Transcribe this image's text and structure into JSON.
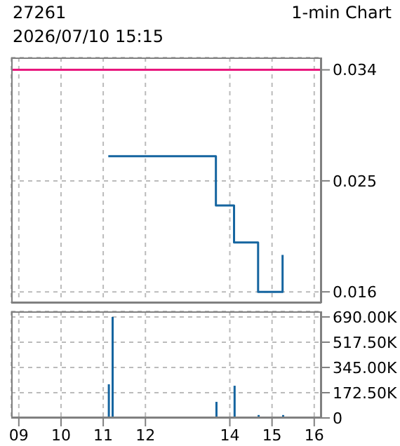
{
  "chart_data": [
    {
      "type": "step",
      "title": "27261",
      "subtitle": "1-min Chart",
      "annotations": [
        "2026/07/10 15:15"
      ],
      "series": [
        {
          "color": "#1565a0",
          "x": [
            11.12,
            13.67,
            14.1,
            14.67,
            15.25
          ],
          "values": [
            0.027,
            0.023,
            0.02,
            0.016,
            0.019
          ]
        }
      ],
      "xlim": [
        8.82,
        16.17
      ],
      "xticks": [
        9,
        10,
        11,
        12,
        14,
        15,
        16
      ],
      "ylim": [
        0.0151,
        0.035
      ],
      "yticks": [
        0.016,
        0.025,
        0.034
      ],
      "ref_lines": [
        {
          "axis": "y",
          "value": 0.034,
          "color": "#e8177d"
        }
      ],
      "grid": true,
      "tick_labels": "y"
    },
    {
      "type": "bar",
      "series": [
        {
          "color": "#1565a0",
          "x": [
            11.12,
            11.21,
            13.67,
            14.1,
            14.67,
            15.25
          ],
          "values": [
            230000,
            690000,
            110000,
            220000,
            20000,
            20000
          ]
        }
      ],
      "xlim": [
        8.82,
        16.17
      ],
      "xticks": [
        {
          "value": 9,
          "label": "09"
        },
        10,
        11,
        12,
        14,
        15,
        16
      ],
      "ylim": [
        0,
        728000
      ],
      "yticks": [
        0,
        {
          "value": 172500,
          "label": "172.50K"
        },
        {
          "value": 345000,
          "label": "345.00K"
        },
        {
          "value": 517500,
          "label": "517.50K"
        },
        {
          "value": 690000,
          "label": "690.00K"
        }
      ],
      "grid": true
    }
  ]
}
